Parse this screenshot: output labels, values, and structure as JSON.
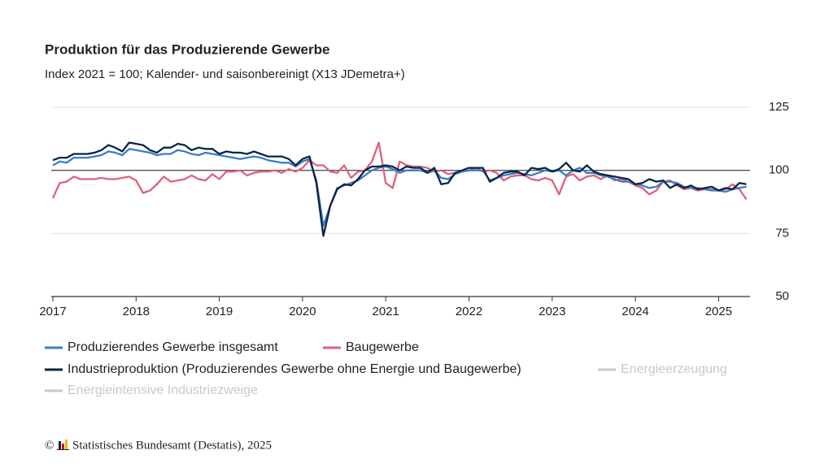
{
  "chart_data": {
    "type": "line",
    "title": "Produktion für das Produzierende Gewerbe",
    "subtitle": "Index 2021 = 100; Kalender- und saisonbereinigt (X13 JDemetra+)",
    "x": [
      "2017-01",
      "2017-02",
      "2017-03",
      "2017-04",
      "2017-05",
      "2017-06",
      "2017-07",
      "2017-08",
      "2017-09",
      "2017-10",
      "2017-11",
      "2017-12",
      "2018-01",
      "2018-02",
      "2018-03",
      "2018-04",
      "2018-05",
      "2018-06",
      "2018-07",
      "2018-08",
      "2018-09",
      "2018-10",
      "2018-11",
      "2018-12",
      "2019-01",
      "2019-02",
      "2019-03",
      "2019-04",
      "2019-05",
      "2019-06",
      "2019-07",
      "2019-08",
      "2019-09",
      "2019-10",
      "2019-11",
      "2019-12",
      "2020-01",
      "2020-02",
      "2020-03",
      "2020-04",
      "2020-05",
      "2020-06",
      "2020-07",
      "2020-08",
      "2020-09",
      "2020-10",
      "2020-11",
      "2020-12",
      "2021-01",
      "2021-02",
      "2021-03",
      "2021-04",
      "2021-05",
      "2021-06",
      "2021-07",
      "2021-08",
      "2021-09",
      "2021-10",
      "2021-11",
      "2021-12",
      "2022-01",
      "2022-02",
      "2022-03",
      "2022-04",
      "2022-05",
      "2022-06",
      "2022-07",
      "2022-08",
      "2022-09",
      "2022-10",
      "2022-11",
      "2022-12",
      "2023-01",
      "2023-02",
      "2023-03",
      "2023-04",
      "2023-05",
      "2023-06",
      "2023-07",
      "2023-08",
      "2023-09",
      "2023-10",
      "2023-11",
      "2023-12",
      "2024-01",
      "2024-02",
      "2024-03",
      "2024-04",
      "2024-05",
      "2024-06",
      "2024-07",
      "2024-08",
      "2024-09",
      "2024-10",
      "2024-11",
      "2024-12",
      "2025-01",
      "2025-02",
      "2025-03",
      "2025-04",
      "2025-05"
    ],
    "xticks": [
      {
        "value": "2017-01",
        "label": "2017"
      },
      {
        "value": "2018-01",
        "label": "2018"
      },
      {
        "value": "2019-01",
        "label": "2019"
      },
      {
        "value": "2020-01",
        "label": "2020"
      },
      {
        "value": "2021-01",
        "label": "2021"
      },
      {
        "value": "2022-01",
        "label": "2022"
      },
      {
        "value": "2023-01",
        "label": "2023"
      },
      {
        "value": "2024-01",
        "label": "2024"
      },
      {
        "value": "2025-01",
        "label": "2025"
      }
    ],
    "ylim": [
      50,
      125
    ],
    "yticks": [
      50,
      75,
      100,
      125
    ],
    "reference_line": 100,
    "grid": true,
    "series": [
      {
        "name": "Produzierendes Gewerbe insgesamt",
        "color": "#3a7dc9",
        "values": [
          102,
          103.5,
          103,
          105,
          105,
          105,
          105.5,
          106,
          107.5,
          107,
          106,
          108.5,
          108,
          107.5,
          107,
          106,
          106.5,
          106.5,
          108,
          107.5,
          106.5,
          106,
          107,
          106.5,
          106,
          105.5,
          105,
          104.5,
          105,
          105.5,
          105,
          104,
          103.5,
          103,
          103,
          101.5,
          103.5,
          104.5,
          96,
          78,
          86,
          93,
          94,
          95,
          96,
          98,
          100,
          101,
          101.5,
          100.5,
          99,
          100,
          100,
          100,
          99,
          100,
          97,
          96.5,
          98.5,
          99.5,
          100,
          100,
          100,
          96,
          97,
          98,
          98.5,
          99,
          98.5,
          98,
          99,
          100,
          99.5,
          100,
          98,
          100,
          101,
          99,
          99,
          98,
          97.5,
          96.5,
          95.5,
          95.5,
          94.5,
          94,
          93,
          93.5,
          95.5,
          95.5,
          95,
          93.5,
          93,
          93,
          92.5,
          92,
          92,
          91.5,
          92.5,
          93,
          93.5
        ]
      },
      {
        "name": "Baugewerbe",
        "color": "#e0607a",
        "values": [
          89,
          95,
          95.5,
          97.5,
          96.5,
          96.5,
          96.5,
          97,
          96.5,
          96.5,
          97,
          97.5,
          96,
          91,
          92,
          94.5,
          97.5,
          95.5,
          96,
          96.5,
          98,
          96.5,
          96,
          98.5,
          96.5,
          99.5,
          99.5,
          100,
          98,
          99,
          99.5,
          99.5,
          100,
          99,
          100.5,
          99.5,
          101,
          104,
          102,
          102,
          99.5,
          99,
          102,
          97,
          99.5,
          100,
          103.5,
          111,
          95,
          93,
          103.5,
          102,
          101.5,
          101.5,
          101,
          99.5,
          100,
          98.5,
          99,
          99.5,
          100,
          101,
          99.5,
          100,
          99,
          96,
          97.5,
          98,
          98,
          96.5,
          96,
          97,
          96,
          90.5,
          97.5,
          98.5,
          96,
          97.5,
          98,
          96.5,
          98,
          96,
          96.5,
          95.5,
          94,
          93,
          90.5,
          92,
          95.5,
          96,
          94,
          92.5,
          93,
          92,
          92.5,
          92.5,
          92,
          92.5,
          94.5,
          92.5,
          88.5
        ]
      },
      {
        "name": "Industrieproduktion (Produzierendes Gewerbe ohne Energie und Baugewerbe)",
        "color": "#0b2545",
        "values": [
          104,
          105,
          105,
          106.5,
          106.5,
          106.5,
          107,
          108,
          110,
          109,
          107.5,
          111,
          110.5,
          110,
          108,
          107,
          109,
          109,
          110.5,
          110,
          108,
          109,
          108.5,
          108.5,
          106.5,
          107.5,
          107,
          107,
          106.5,
          107.5,
          106.5,
          105.5,
          105.5,
          105.5,
          104.5,
          102,
          104.5,
          105.5,
          95,
          74,
          86,
          92.5,
          94.5,
          94,
          96.5,
          100,
          101.5,
          101.5,
          102,
          101.5,
          100,
          101.5,
          101,
          101,
          99,
          101,
          94.5,
          95,
          99,
          100,
          101,
          101,
          101,
          95.5,
          97,
          99,
          99.5,
          99.5,
          98,
          101,
          100.5,
          101,
          99.5,
          100.5,
          103,
          100,
          99.5,
          102,
          99.5,
          98.5,
          98,
          97.5,
          97,
          96.5,
          94.5,
          95,
          96.5,
          95.5,
          96,
          93,
          94.5,
          93,
          94,
          92.5,
          93,
          93.5,
          92,
          93,
          92.5,
          95,
          94.5
        ]
      },
      {
        "name": "Energieerzeugung",
        "color": "#c8c8c8",
        "visible": false
      },
      {
        "name": "Energieintensive Industriezweige",
        "color": "#c8c8c8",
        "visible": false
      }
    ],
    "copyright": "©",
    "source": "Statistisches Bundesamt (Destatis), 2025"
  }
}
